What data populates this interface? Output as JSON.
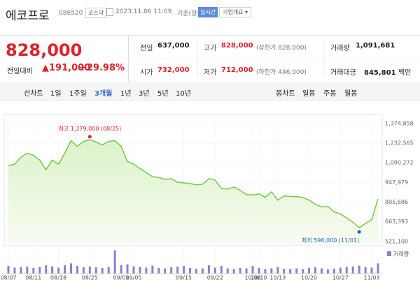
{
  "header": {
    "name": "에코프로",
    "code": "086520",
    "market": "코스닥",
    "datetime": "2023.11.06 11:09",
    "basis": "기준(장중)",
    "realtime": "실시간",
    "company_info": "기업개요"
  },
  "quote": {
    "price": "828,000",
    "change_label": "전일대비",
    "change": "191,000",
    "change_rate": "+29.98%",
    "stats": [
      {
        "label": "전일",
        "value": "637,000"
      },
      {
        "label": "고가",
        "value": "828,000",
        "note": "(상한가 828,000)"
      },
      {
        "label": "거래량",
        "value": "1,091,681"
      },
      {
        "label": "시가",
        "value": "732,000"
      },
      {
        "label": "저가",
        "value": "712,000",
        "note": "(하한가 446,000)"
      },
      {
        "label": "거래대금",
        "value": "845,801",
        "unit": "백만"
      }
    ]
  },
  "tabs": {
    "line_label": "선차트",
    "line_periods": [
      "1일",
      "1주일",
      "3개월",
      "1년",
      "3년",
      "5년",
      "10년"
    ],
    "active": 2,
    "candle_label": "봉차트",
    "candle_periods": [
      "일봉",
      "주봉",
      "월봉"
    ]
  },
  "chart_data": {
    "type": "area",
    "categories": [
      "08/07",
      null,
      null,
      null,
      "08/11",
      null,
      null,
      null,
      "08/18",
      null,
      null,
      null,
      null,
      "08/25",
      null,
      null,
      null,
      null,
      "09/01",
      null,
      "09/05",
      null,
      null,
      null,
      null,
      null,
      null,
      null,
      "09/15",
      null,
      null,
      null,
      null,
      "09/22",
      null,
      null,
      null,
      null,
      null,
      "10/06",
      "10/10",
      null,
      null,
      "10/13",
      null,
      null,
      null,
      null,
      "10/20",
      null,
      null,
      null,
      null,
      "10/27",
      null,
      null,
      null,
      null,
      "11/03",
      null
    ],
    "series": [
      {
        "color": "#74c947",
        "values": [
          1070000,
          1080000,
          1130000,
          1160000,
          1145000,
          1110000,
          1040000,
          1110000,
          1080000,
          1160000,
          1250000,
          1210000,
          1245000,
          1258000,
          1240000,
          1220000,
          1245000,
          1250000,
          1210000,
          1100000,
          1080000,
          1050000,
          1020000,
          990000,
          985000,
          970000,
          975000,
          950000,
          945000,
          940000,
          930000,
          935000,
          975000,
          965000,
          905000,
          900000,
          915000,
          890000,
          860000,
          858000,
          865000,
          840000,
          880000,
          820000,
          850000,
          848000,
          845000,
          840000,
          820000,
          790000,
          770000,
          775000,
          735000,
          720000,
          690000,
          660000,
          620000,
          650000,
          680000,
          828000
        ]
      }
    ],
    "ylim": [
      500000,
      1420000
    ],
    "yticks": [
      {
        "value": 1374858,
        "label": "1,374,858"
      },
      {
        "value": 1232565,
        "label": "1,232,565"
      },
      {
        "value": 1090272,
        "label": "1,090,272"
      },
      {
        "value": 947979,
        "label": "947,979"
      },
      {
        "value": 805686,
        "label": "805,686"
      },
      {
        "value": 663393,
        "label": "663,393"
      },
      {
        "value": 521100,
        "label": "521,100"
      }
    ],
    "grid": true,
    "high": {
      "label": "최고",
      "value": 1279000,
      "value_label": "1,279,000",
      "date": "(08/25)",
      "color": "#e0222a"
    },
    "low": {
      "label": "최저",
      "value": 590000,
      "value_label": "590,000",
      "date": "(11/01)",
      "color": "#1e64c8"
    },
    "volume": {
      "label": "거래량",
      "color": "#8f7fc9",
      "ylim": [
        0,
        2700000
      ],
      "values": [
        820000,
        650000,
        700000,
        760000,
        600000,
        720000,
        900000,
        780000,
        640000,
        900000,
        1100000,
        820000,
        700000,
        760000,
        680000,
        600000,
        720000,
        2500000,
        900000,
        1000000,
        780000,
        720000,
        640000,
        860000,
        600000,
        560000,
        700000,
        760000,
        820000,
        600000,
        520000,
        560000,
        900000,
        640000,
        820000,
        560000,
        500000,
        600000,
        560000,
        820000,
        620000,
        480000,
        560000,
        700000,
        520000,
        500000,
        560000,
        480000,
        620000,
        700000,
        560000,
        480000,
        520000,
        640000,
        720000,
        780000,
        860000,
        700000,
        640000,
        1091681
      ]
    }
  }
}
